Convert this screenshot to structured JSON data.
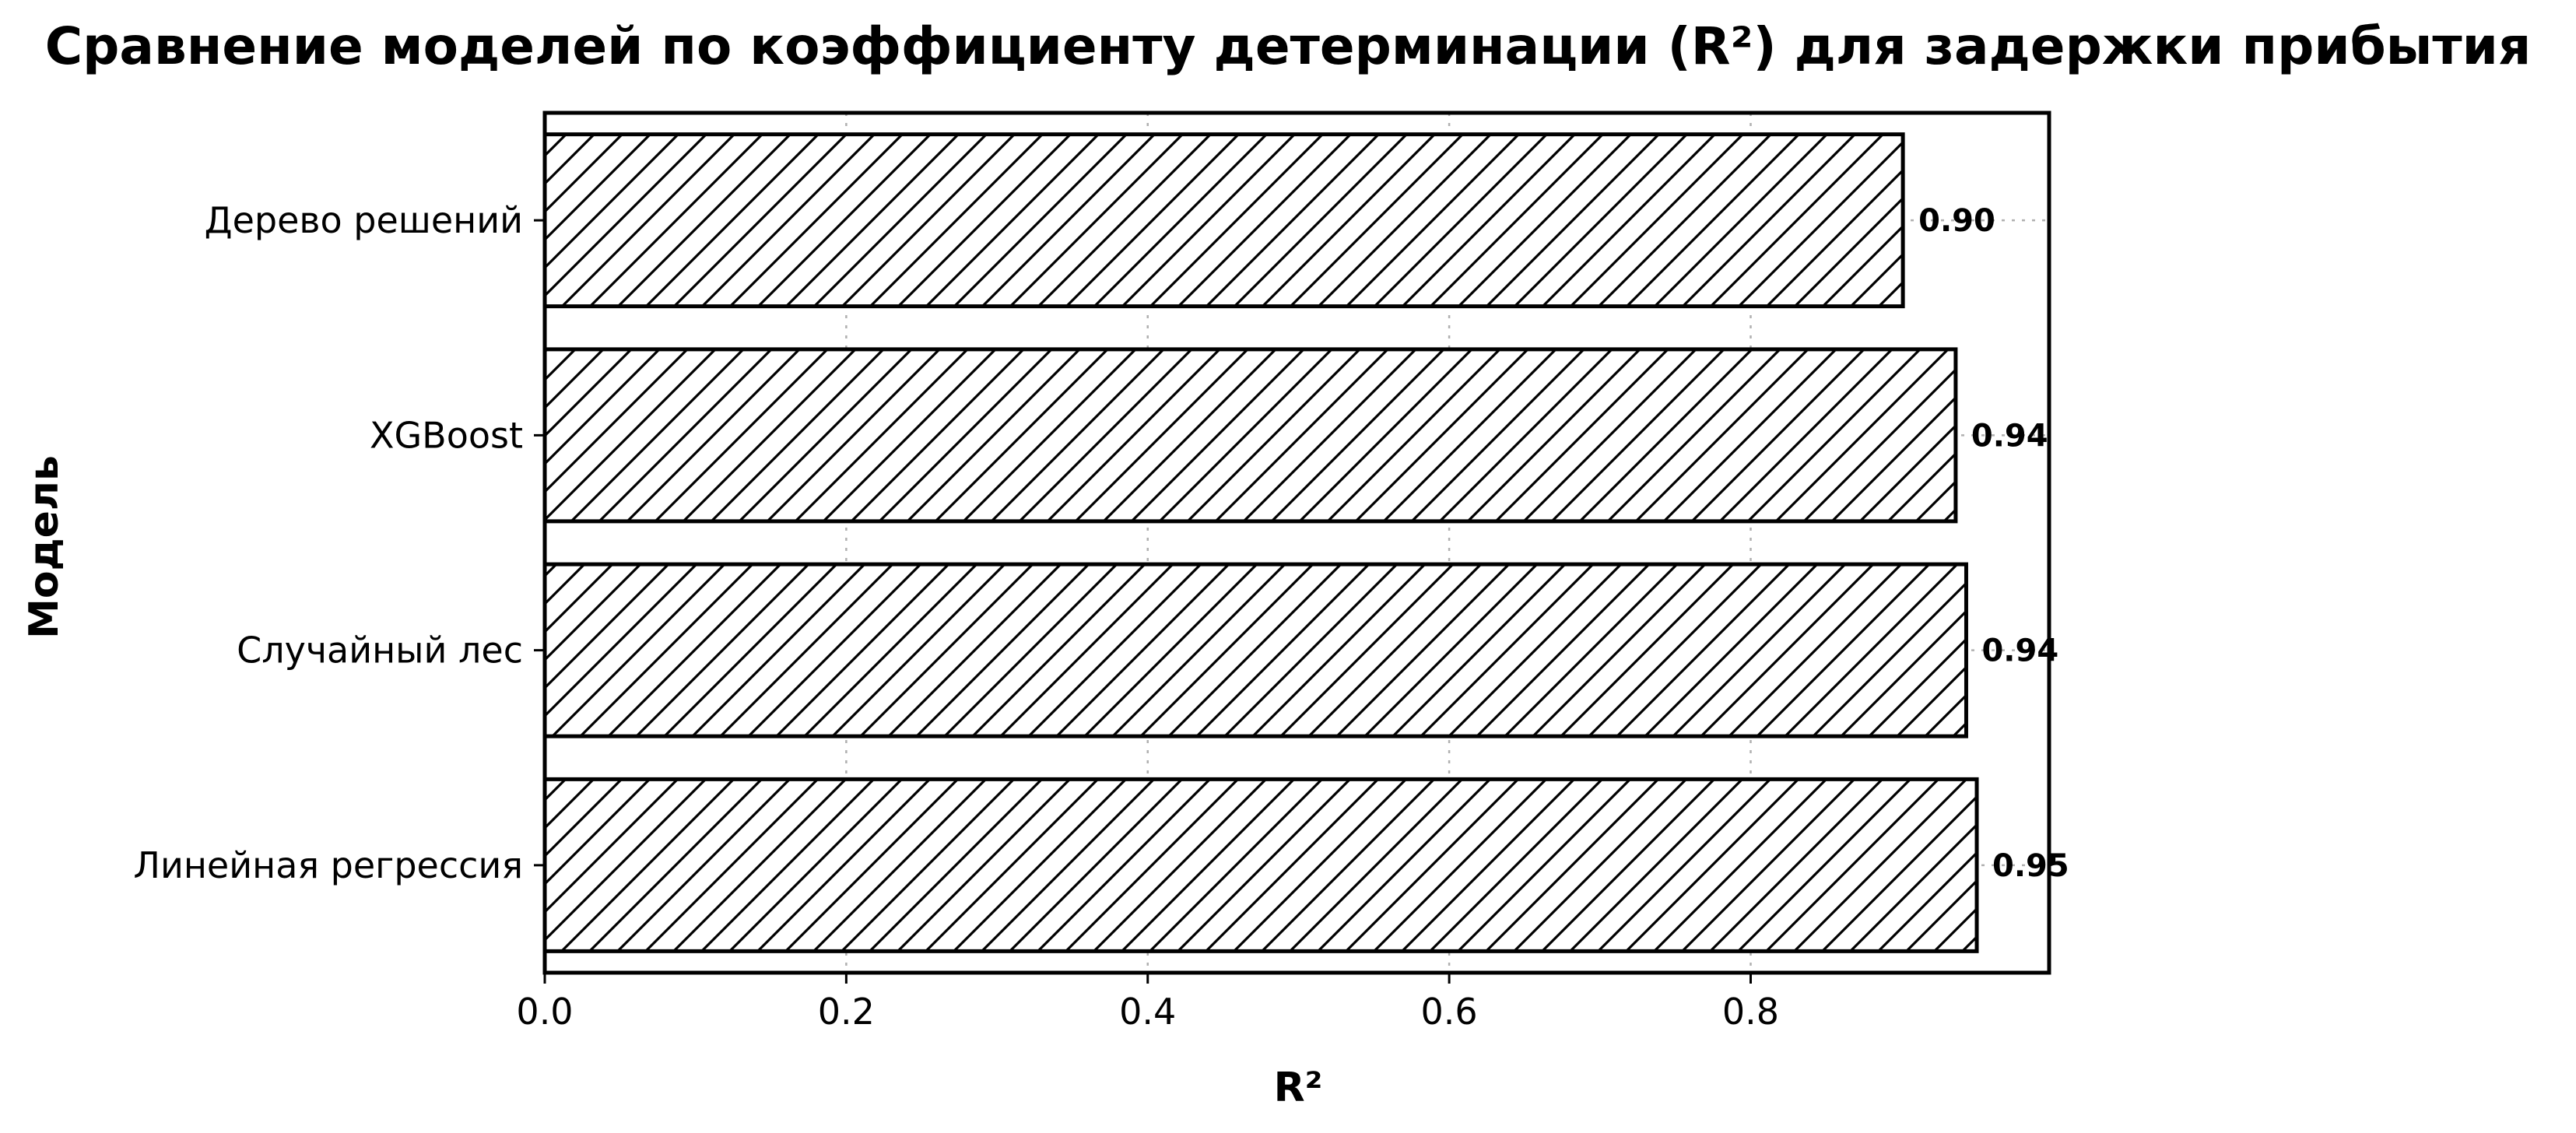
{
  "chart_data": {
    "type": "bar",
    "orientation": "horizontal",
    "title": "Сравнение моделей по коэффициенту детерминации (R²) для задержки прибытия",
    "xlabel": "R²",
    "ylabel": "Модель",
    "categories": [
      "Линейная регрессия",
      "Случайный лес",
      "XGBoost",
      "Дерево решений"
    ],
    "values": [
      0.95,
      0.943,
      0.936,
      0.901
    ],
    "data_labels": [
      "0.95",
      "0.94",
      "0.94",
      "0.90"
    ],
    "xlim": [
      0,
      0.998
    ],
    "xticks": [
      0.0,
      0.2,
      0.4,
      0.6,
      0.8
    ],
    "xtick_labels": [
      "0.0",
      "0.2",
      "0.4",
      "0.6",
      "0.8"
    ],
    "grid": "x, dotted",
    "legend": "none",
    "colors": {
      "bar_fill": "#ffffff",
      "bar_edge": "#000000",
      "hatch": "#000000",
      "grid": "#b0b0b0"
    },
    "hatch": "diagonal"
  }
}
